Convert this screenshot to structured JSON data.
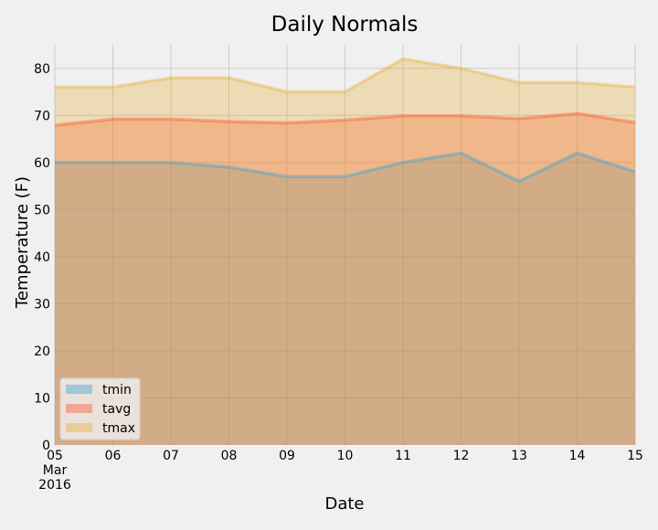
{
  "chart_data": {
    "type": "area",
    "title": "Daily Normals",
    "xlabel": "Date",
    "ylabel": "Temperature (F)",
    "x": [
      "05",
      "06",
      "07",
      "08",
      "09",
      "10",
      "11",
      "12",
      "13",
      "14",
      "15"
    ],
    "x_sub_first": [
      "Mar",
      "2016"
    ],
    "ylim": [
      0,
      85
    ],
    "yticks": [
      0,
      10,
      20,
      30,
      40,
      50,
      60,
      70,
      80
    ],
    "grid": true,
    "legend_position": "lower-left",
    "series": [
      {
        "name": "tmin",
        "color": "#30a2da",
        "values": [
          60,
          60,
          60,
          59,
          57,
          57,
          60,
          62,
          56,
          62,
          58
        ]
      },
      {
        "name": "tavg",
        "color": "#fc4f30",
        "values": [
          67.9,
          69.2,
          69.2,
          68.7,
          68.4,
          69.0,
          69.9,
          69.9,
          69.3,
          70.4,
          68.5
        ]
      },
      {
        "name": "tmax",
        "color": "#e5ae38",
        "values": [
          76,
          76,
          78,
          78,
          75,
          75,
          82,
          80,
          77,
          77,
          76
        ]
      }
    ]
  }
}
